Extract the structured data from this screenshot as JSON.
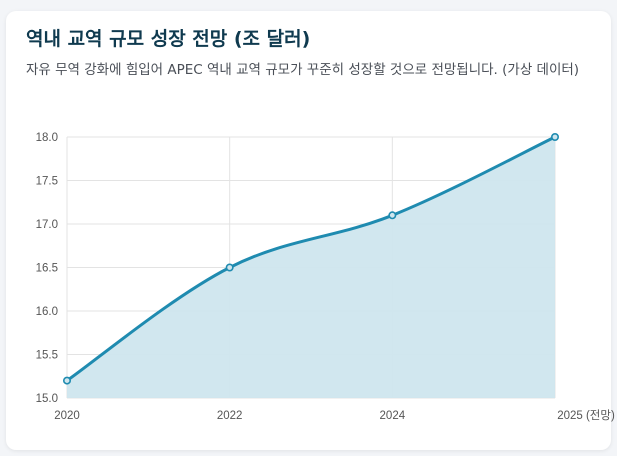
{
  "card": {
    "title": "역내 교역 규모 성장 전망 (조 달러)",
    "subtitle": "자유 무역 강화에 힘입어 APEC 역내 교역 규모가 꾸준히 성장할 것으로 전망됩니다. (가상 데이터)"
  },
  "colors": {
    "line": "#1f8bb0",
    "fill": "#cfe6ee",
    "grid": "#e3e3e3",
    "title": "#0f3a4f"
  },
  "chart_data": {
    "type": "area",
    "title": "역내 교역 규모 성장 전망 (조 달러)",
    "xlabel": "",
    "ylabel": "",
    "categories": [
      "2020",
      "2022",
      "2024",
      "2025 (전망)"
    ],
    "x_ticks": [
      "2020",
      "2022",
      "2024",
      "2025 (전망)"
    ],
    "y_ticks": [
      "15.0",
      "15.5",
      "16.0",
      "16.5",
      "17.0",
      "17.5",
      "18.0"
    ],
    "ylim": [
      15.0,
      18.0
    ],
    "series": [
      {
        "values": [
          15.2,
          16.5,
          17.1,
          18.0
        ]
      }
    ],
    "grid": true,
    "legend": "none"
  }
}
